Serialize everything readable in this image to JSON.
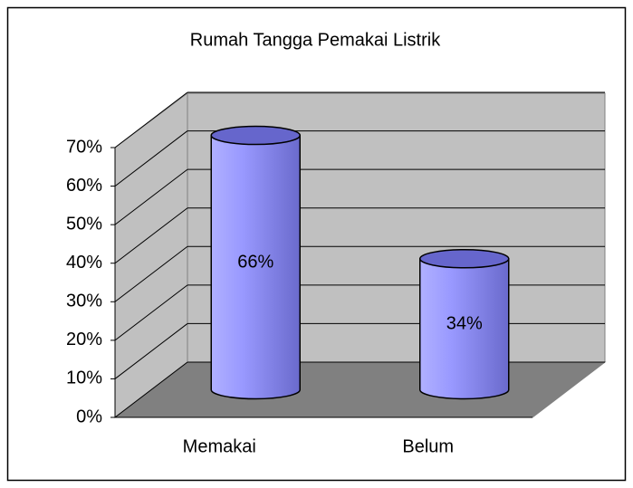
{
  "chart_data": {
    "type": "bar3d",
    "title": "Rumah Tangga Pemakai Listrik",
    "categories": [
      "Memakai",
      "Belum"
    ],
    "values": [
      66,
      34
    ],
    "value_labels": [
      "66%",
      "34%"
    ],
    "color": "#9999ff",
    "ylim": [
      0,
      70
    ],
    "yticks": [
      {
        "value": 0,
        "label": "0%"
      },
      {
        "value": 10,
        "label": "10%"
      },
      {
        "value": 20,
        "label": "20%"
      },
      {
        "value": 30,
        "label": "30%"
      },
      {
        "value": 40,
        "label": "40%"
      },
      {
        "value": 50,
        "label": "50%"
      },
      {
        "value": 60,
        "label": "60%"
      },
      {
        "value": 70,
        "label": "70%"
      }
    ],
    "grid": true
  }
}
